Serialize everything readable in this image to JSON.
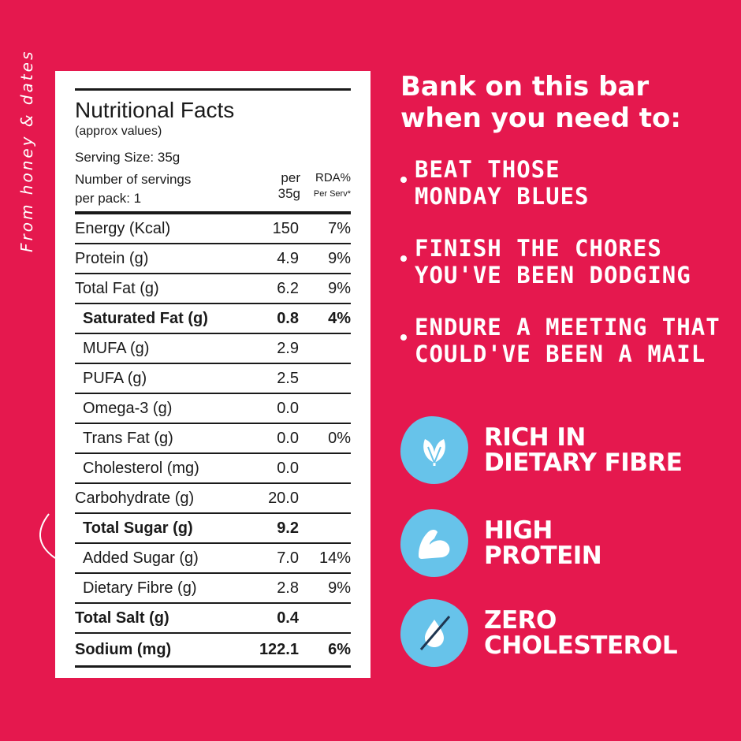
{
  "side_note": "From honey & dates",
  "nutrition": {
    "title": "Nutritional Facts",
    "subtitle": "(approx values)",
    "serving_size": "Serving Size: 35g",
    "servings_line1": "Number of servings",
    "servings_line2": "per pack: 1",
    "col_per_line1": "per",
    "col_per_line2": "35g",
    "col_rda_line1": "RDA%",
    "col_rda_line2": "Per Serv*",
    "rows": [
      {
        "label": "Energy (Kcal)",
        "value": "150",
        "rda": "7%"
      },
      {
        "label": "Protein (g)",
        "value": "4.9",
        "rda": "9%"
      },
      {
        "label": "Total Fat (g)",
        "value": "6.2",
        "rda": "9%"
      },
      {
        "label": "Saturated Fat (g)",
        "value": "0.8",
        "rda": "4%"
      },
      {
        "label": "MUFA (g)",
        "value": "2.9",
        "rda": ""
      },
      {
        "label": "PUFA (g)",
        "value": "2.5",
        "rda": ""
      },
      {
        "label": "Omega-3 (g)",
        "value": "0.0",
        "rda": ""
      },
      {
        "label": "Trans Fat (g)",
        "value": "0.0",
        "rda": "0%"
      },
      {
        "label": "Cholesterol (mg)",
        "value": "0.0",
        "rda": ""
      },
      {
        "label": "Carbohydrate (g)",
        "value": "20.0",
        "rda": ""
      },
      {
        "label": "Total Sugar (g)",
        "value": "9.2",
        "rda": ""
      },
      {
        "label": "Added Sugar (g)",
        "value": "7.0",
        "rda": "14%"
      },
      {
        "label": "Dietary Fibre (g)",
        "value": "2.8",
        "rda": "9%"
      },
      {
        "label": "Total Salt (g)",
        "value": "0.4",
        "rda": ""
      },
      {
        "label": "Sodium (mg)",
        "value": "122.1",
        "rda": "6%"
      }
    ]
  },
  "headline_line1": "Bank on this bar",
  "headline_line2": "when you need to:",
  "bullets": [
    {
      "line1": "BEAT THOSE",
      "line2": "MONDAY BLUES"
    },
    {
      "line1": "FINISH THE CHORES",
      "line2": "YOU'VE BEEN DODGING"
    },
    {
      "line1": "ENDURE A MEETING THAT",
      "line2": "COULD'VE BEEN A MAIL"
    }
  ],
  "badges": [
    {
      "icon": "leaves-icon",
      "line1": "RICH IN",
      "line2": "DIETARY FIBRE"
    },
    {
      "icon": "flexed-arm-icon",
      "line1": "HIGH",
      "line2": "PROTEIN"
    },
    {
      "icon": "no-drop-icon",
      "line1": "ZERO",
      "line2": "CHOLESTEROL"
    }
  ],
  "colors": {
    "background": "#e5184e",
    "badge_blue": "#67c3ea",
    "panel": "#ffffff",
    "text_dark": "#1a1a1a"
  }
}
